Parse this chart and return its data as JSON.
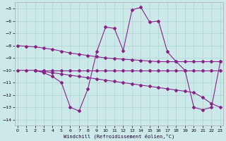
{
  "background_color": "#cce8e8",
  "grid_color": "#aad4d4",
  "line_color": "#882288",
  "xlim": [
    -0.3,
    23.3
  ],
  "ylim": [
    -14.5,
    -4.5
  ],
  "yticks": [
    -14,
    -13,
    -12,
    -11,
    -10,
    -9,
    -8,
    -7,
    -6,
    -5
  ],
  "xticks": [
    0,
    1,
    2,
    3,
    4,
    5,
    6,
    7,
    8,
    9,
    10,
    11,
    12,
    13,
    14,
    15,
    16,
    17,
    18,
    19,
    20,
    21,
    22,
    23
  ],
  "xlabel": "Windchill (Refroidissement éolien,°C)",
  "line1_x": [
    0,
    1,
    2,
    3,
    4,
    5,
    6,
    7,
    8,
    9,
    10,
    11,
    12,
    13,
    14,
    15,
    16,
    17,
    18,
    19,
    20,
    21,
    22,
    23
  ],
  "line1_y": [
    -8.0,
    -8.05,
    -8.1,
    -8.2,
    -8.3,
    -8.45,
    -8.6,
    -8.7,
    -8.8,
    -8.9,
    -9.0,
    -9.05,
    -9.1,
    -9.15,
    -9.2,
    -9.25,
    -9.3,
    -9.3,
    -9.3,
    -9.3,
    -9.3,
    -9.3,
    -9.3,
    -9.3
  ],
  "line2_x": [
    2,
    3,
    4,
    5,
    6,
    7,
    8,
    9,
    10,
    11,
    12,
    13,
    14,
    15,
    16,
    17,
    18,
    19,
    20,
    21,
    22,
    23
  ],
  "line2_y": [
    -10.0,
    -10.1,
    -10.2,
    -10.3,
    -10.4,
    -10.5,
    -10.6,
    -10.7,
    -10.8,
    -10.9,
    -11.0,
    -11.1,
    -11.2,
    -11.3,
    -11.4,
    -11.5,
    -11.6,
    -11.7,
    -11.8,
    -12.2,
    -12.7,
    -13.0
  ],
  "line3_x": [
    0,
    1,
    2,
    3,
    4,
    5,
    6,
    7,
    8,
    9,
    10,
    11,
    12,
    13,
    14,
    15,
    16,
    17,
    18,
    19,
    20,
    21,
    22,
    23
  ],
  "line3_y": [
    -10.0,
    -10.0,
    -10.0,
    -10.2,
    -10.5,
    -11.0,
    -13.0,
    -13.3,
    -11.5,
    -8.5,
    -6.5,
    -6.6,
    -8.4,
    -5.1,
    -4.9,
    -6.1,
    -6.0,
    -8.5,
    -9.3,
    -10.0,
    -13.0,
    -13.2,
    -13.0,
    -9.3
  ],
  "line4_x": [
    2,
    3,
    4,
    5,
    6,
    7,
    8,
    9,
    10,
    11,
    12,
    13,
    14,
    15,
    16,
    17,
    18,
    19,
    20,
    21,
    22,
    23
  ],
  "line4_y": [
    -10.0,
    -10.0,
    -10.0,
    -10.0,
    -10.0,
    -10.0,
    -10.0,
    -10.0,
    -10.0,
    -10.0,
    -10.0,
    -10.0,
    -10.0,
    -10.0,
    -10.0,
    -10.0,
    -10.0,
    -10.0,
    -10.0,
    -10.0,
    -10.0,
    -10.0
  ],
  "markersize": 2.0,
  "linewidth": 0.8
}
